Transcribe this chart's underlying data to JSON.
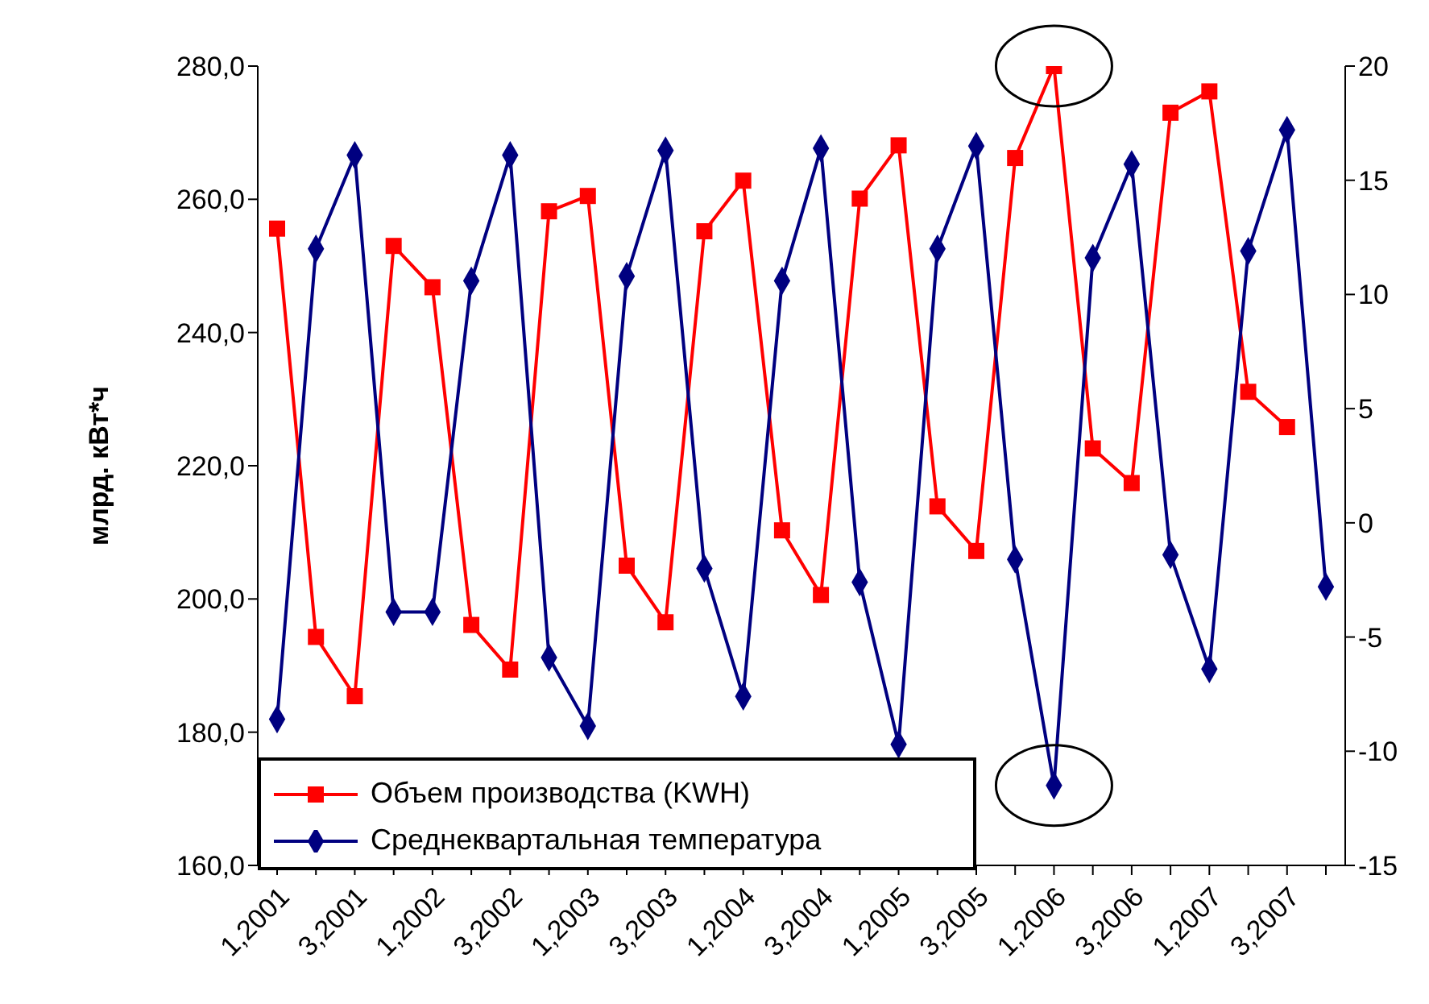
{
  "chart_data": {
    "type": "line",
    "ylabel": "млрд. кВт*ч",
    "categories": [
      "1,2001",
      null,
      "3,2001",
      null,
      "1,2002",
      null,
      "3,2002",
      null,
      "1,2003",
      null,
      "3,2003",
      null,
      "1,2004",
      null,
      "3,2004",
      null,
      "1,2005",
      null,
      "3,2005",
      null,
      "1,2006",
      null,
      "3,2006",
      null,
      "1,2007",
      null,
      "3,2007",
      null
    ],
    "series": [
      {
        "name": "Объем производства (KWH)",
        "color": "#ff0000",
        "marker": "square",
        "values": [
          255.6,
          194.3,
          185.4,
          253.0,
          246.8,
          196.1,
          189.4,
          258.2,
          260.5,
          205.0,
          196.5,
          255.2,
          262.8,
          210.3,
          200.6,
          260.1,
          268.1,
          213.9,
          207.2,
          266.2,
          280.0,
          222.6,
          217.4,
          273.0,
          276.2,
          231.1,
          225.8,
          null
        ]
      },
      {
        "name": "Среднеквартальная температура",
        "color": "#000080",
        "marker": "diamond",
        "axis": "y2",
        "values": [
          -8.6,
          12.0,
          16.1,
          -3.9,
          -3.9,
          10.6,
          16.1,
          -5.9,
          -8.9,
          10.8,
          16.3,
          -2.0,
          -7.6,
          10.6,
          16.4,
          -2.6,
          -9.7,
          12.0,
          16.5,
          -1.6,
          -11.5,
          11.6,
          15.7,
          -1.4,
          -6.4,
          11.9,
          17.2,
          -2.8
        ]
      }
    ],
    "ylim": [
      160,
      280
    ],
    "yticks": [
      {
        "value": 160,
        "label": "160,0"
      },
      {
        "value": 180,
        "label": "180,0"
      },
      {
        "value": 200,
        "label": "200,0"
      },
      {
        "value": 220,
        "label": "220,0"
      },
      {
        "value": 240,
        "label": "240,0"
      },
      {
        "value": 260,
        "label": "260,0"
      },
      {
        "value": 280,
        "label": "280,0"
      }
    ],
    "y2lim": [
      -15,
      20
    ],
    "y2ticks": [
      -15,
      -10,
      -5,
      0,
      5,
      10,
      15,
      20
    ],
    "grid": false,
    "legend": "bottom left",
    "line_style": "solid"
  }
}
